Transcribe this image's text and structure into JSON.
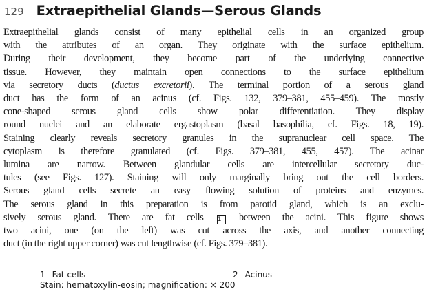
{
  "header": {
    "page_number": "129",
    "title": "Extraepithelial Glands—Serous Glands"
  },
  "body": {
    "l1": "Extraepithelial glands consist of many epithelial cells in an organized group",
    "l2": "with the attributes of an organ. They originate with the surface epithelium.",
    "l3": "During their development, they become part of the underlying connective",
    "l4": "tissue. However, they maintain open connections to the surface epithelium",
    "l5a": "via secretory ducts (",
    "l5b": "ductus excretorii",
    "l5c": "). The terminal portion of a serous gland",
    "l6": "duct has the form of an acinus (cf. Figs. 132, 379–381, 455–459). The mostly",
    "l7": "cone-shaped serous gland cells show polar differentiation. They display",
    "l8": "round nuclei and an elaborate ergastoplasm (basal basophilia, cf. Figs. 18, 19).",
    "l9": "Staining clearly reveals secretory granules in the supranuclear cell space. The",
    "l10": "cytoplasm is therefore granulated (cf. Figs. 379–381, 455, 457). The acinar",
    "l11": "lumina are narrow. Between glandular cells are intercellular secretory duc-",
    "l12": "tules (see Figs. 127). Staining will only marginally bring out the cell borders.",
    "l13": "Serous gland cells secrete an easy flowing solution of proteins and enzymes.",
    "l14": "The serous gland in this preparation is from parotid gland, which is an exclu-",
    "l15a": "sively serous gland. There are fat cells",
    "l15_marker": "1",
    "l15b": "between the acini. This figure shows",
    "l16": "two acini, one (on the left) was cut across the axis, and another connecting",
    "l17": "duct (in the right upper corner) was cut lengthwise (cf. Figs. 379–381)."
  },
  "legend": {
    "items": [
      {
        "num": "1",
        "label": "Fat cells"
      },
      {
        "num": "2",
        "label": "Acinus"
      }
    ],
    "stain": "Stain: hematoxylin-eosin; magnification: × 200"
  }
}
